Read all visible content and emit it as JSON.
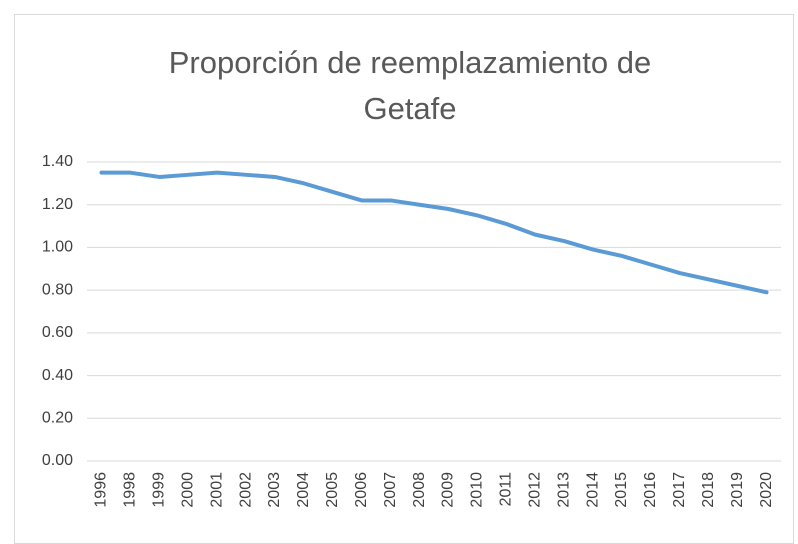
{
  "chart_data": {
    "type": "line",
    "title": "Proporción de reemplazamiento de Getafe",
    "categories": [
      "1996",
      "1998",
      "1999",
      "2000",
      "2001",
      "2002",
      "2003",
      "2004",
      "2005",
      "2006",
      "2007",
      "2008",
      "2009",
      "2010",
      "2011",
      "2012",
      "2013",
      "2014",
      "2015",
      "2016",
      "2017",
      "2018",
      "2019",
      "2020"
    ],
    "series": [
      {
        "name": "Getafe",
        "color": "#5b9bd5",
        "values": [
          1.35,
          1.35,
          1.33,
          1.34,
          1.35,
          1.34,
          1.33,
          1.3,
          1.26,
          1.22,
          1.22,
          1.2,
          1.18,
          1.15,
          1.11,
          1.06,
          1.03,
          0.99,
          0.96,
          0.92,
          0.88,
          0.85,
          0.82,
          0.79
        ]
      }
    ],
    "ylim": [
      0,
      1.4
    ],
    "yticks": [
      {
        "value": 0,
        "label": "0.00"
      },
      {
        "value": 0.2,
        "label": "0.20"
      },
      {
        "value": 0.4,
        "label": "0.40"
      },
      {
        "value": 0.6,
        "label": "0.60"
      },
      {
        "value": 0.8,
        "label": "0.80"
      },
      {
        "value": 1.0,
        "label": "1.00"
      },
      {
        "value": 1.2,
        "label": "1.20"
      },
      {
        "value": 1.4,
        "label": "1.40"
      }
    ],
    "grid": true
  }
}
